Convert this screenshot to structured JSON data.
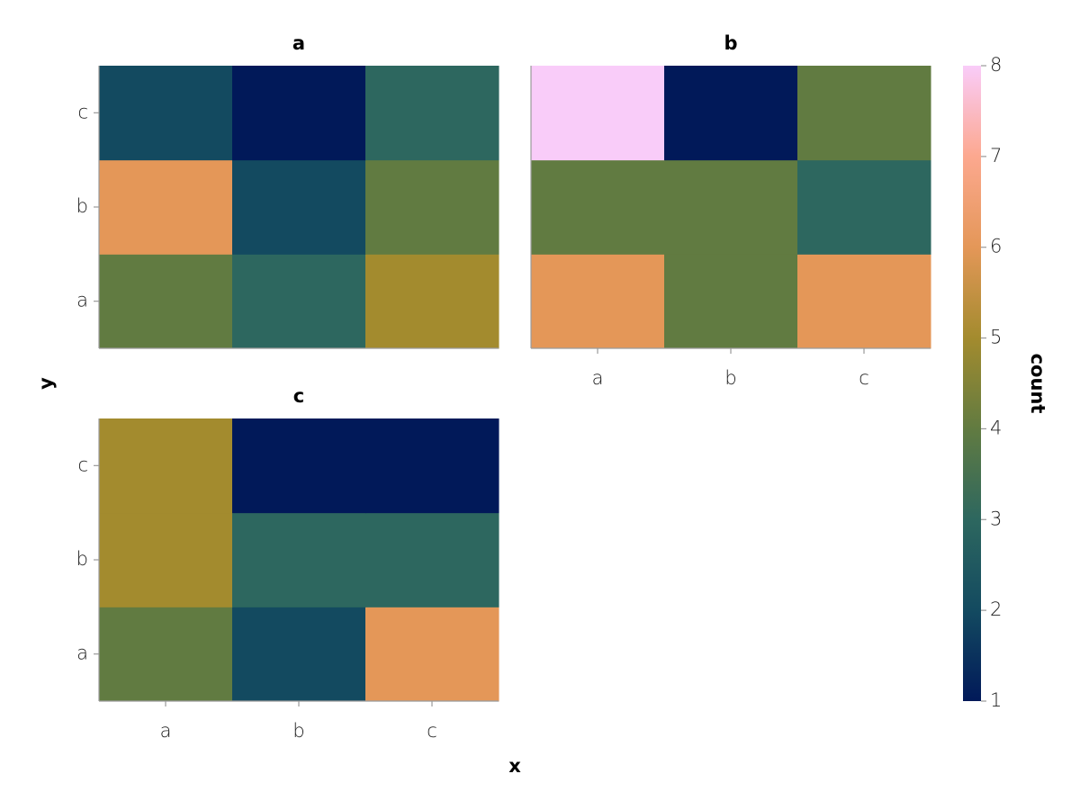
{
  "chart_data": {
    "type": "heatmap",
    "x_label": "x",
    "y_label": "y",
    "colorbar_label": "count",
    "clim": [
      1,
      8
    ],
    "cticks": [
      1,
      2,
      3,
      4,
      5,
      6,
      7,
      8
    ],
    "colormap": [
      "#011959",
      "#134a60",
      "#2d675f",
      "#617b41",
      "#a38b2e",
      "#e49758",
      "#fca88f",
      "#f9ccf9"
    ],
    "facets": [
      {
        "title": "a",
        "x_categories": [
          "a",
          "b",
          "c"
        ],
        "y_categories": [
          "a",
          "b",
          "c"
        ],
        "values": [
          [
            4,
            3,
            5
          ],
          [
            6,
            2,
            4
          ],
          [
            2,
            1,
            3
          ]
        ]
      },
      {
        "title": "b",
        "x_categories": [
          "a",
          "b",
          "c"
        ],
        "y_categories": [
          "a",
          "b",
          "c"
        ],
        "values": [
          [
            6,
            4,
            6
          ],
          [
            4,
            4,
            3
          ],
          [
            8,
            1,
            4
          ]
        ]
      },
      {
        "title": "c",
        "x_categories": [
          "a",
          "b",
          "c"
        ],
        "y_categories": [
          "a",
          "b",
          "c"
        ],
        "values": [
          [
            4,
            2,
            6
          ],
          [
            5,
            3,
            3
          ],
          [
            5,
            1,
            1
          ]
        ]
      }
    ]
  }
}
